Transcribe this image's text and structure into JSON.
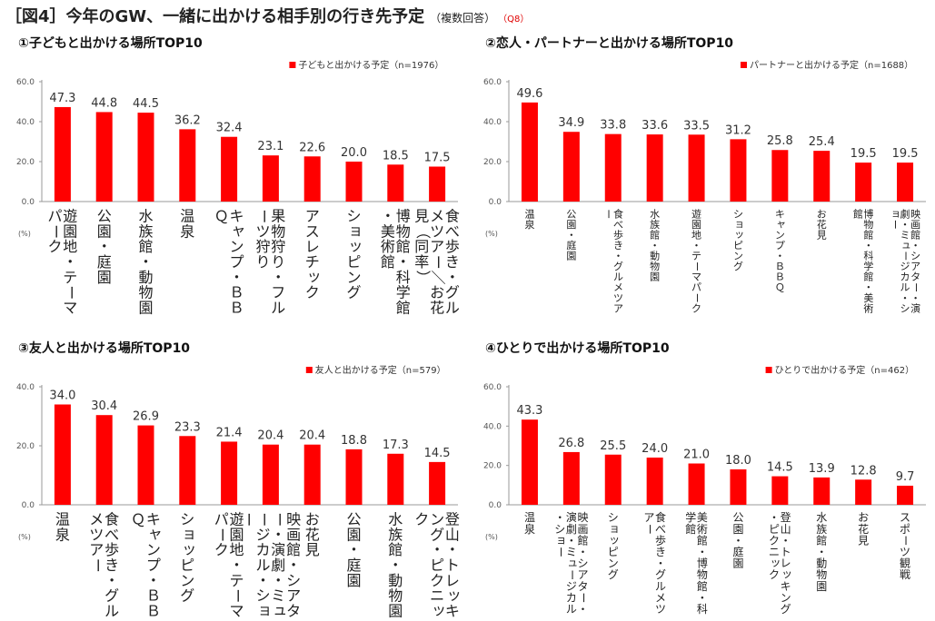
{
  "page_title": {
    "main": "［図4］今年のGW、一緒に出かける相手別の行き先予定",
    "note": "（複数回答）",
    "question": "（Q8）"
  },
  "colors": {
    "bar": "#ff0000",
    "axis": "#999999"
  },
  "chart_data": [
    {
      "type": "bar",
      "title": "①子どもと出かける場所TOP10",
      "legend": "子どもと出かける予定（n=1976）",
      "unit_label": "(%)",
      "ylim": [
        0,
        60
      ],
      "yticks": [
        0,
        20,
        40,
        60
      ],
      "ytick_labels": [
        "0.0",
        "20.0",
        "40.0",
        "60.0"
      ],
      "categories": [
        "遊園地・テーマパーク",
        "公園・庭園",
        "水族館・動物園",
        "温泉",
        "キャンプ・ＢＢＱ",
        "果物狩り・フルーツ狩り",
        "アスレチック",
        "ショッピング",
        "博物館・科学館・美術館",
        "食べ歩き・グルメツアー／お花見（同率）"
      ],
      "values": [
        47.3,
        44.8,
        44.5,
        36.2,
        32.4,
        23.1,
        22.6,
        20.0,
        18.5,
        17.5
      ],
      "value_labels": [
        "47.3",
        "44.8",
        "44.5",
        "36.2",
        "32.4",
        "23.1",
        "22.6",
        "20.0",
        "18.5",
        "17.5"
      ]
    },
    {
      "type": "bar",
      "title": "②恋人・パートナーと出かける場所TOP10",
      "legend": "パートナーと出かける予定（n=1688）",
      "unit_label": "(%)",
      "ylim": [
        0,
        60
      ],
      "yticks": [
        0,
        20,
        40,
        60
      ],
      "ytick_labels": [
        "0.0",
        "20.0",
        "40.0",
        "60.0"
      ],
      "categories": [
        "温泉",
        "公園・庭園",
        "食べ歩き・グルメツアー",
        "水族館・動物園",
        "遊園地・テーマパーク",
        "ショッピング",
        "キャンプ・ＢＢＱ",
        "お花見",
        "博物館・科学館・美術館",
        "映画館・シアター・演劇・ミュージカル・ショー"
      ],
      "values": [
        49.6,
        34.9,
        33.8,
        33.6,
        33.5,
        31.2,
        25.8,
        25.4,
        19.5,
        19.5
      ],
      "value_labels": [
        "49.6",
        "34.9",
        "33.8",
        "33.6",
        "33.5",
        "31.2",
        "25.8",
        "25.4",
        "19.5",
        "19.5"
      ]
    },
    {
      "type": "bar",
      "title": "③友人と出かける場所TOP10",
      "legend": "友人と出かける予定（n=579）",
      "unit_label": "(%)",
      "ylim": [
        0,
        40
      ],
      "yticks": [
        0,
        20,
        40
      ],
      "ytick_labels": [
        "0.0",
        "20.0",
        "40.0"
      ],
      "categories": [
        "温泉",
        "食べ歩き・グルメツアー",
        "キャンプ・ＢＢＱ",
        "ショッピング",
        "遊園地・テーマパーク",
        "映画館・シアター・演劇・ミュージカル・ショー",
        "お花見",
        "公園・庭園",
        "水族館・動物園",
        "登山・トレッキング・ピクニック"
      ],
      "values": [
        34.0,
        30.4,
        26.9,
        23.3,
        21.4,
        20.4,
        20.4,
        18.8,
        17.3,
        14.5
      ],
      "value_labels": [
        "34.0",
        "30.4",
        "26.9",
        "23.3",
        "21.4",
        "20.4",
        "20.4",
        "18.8",
        "17.3",
        "14.5"
      ]
    },
    {
      "type": "bar",
      "title": "④ひとりで出かける場所TOP10",
      "legend": "ひとりで出かける予定（n=462）",
      "unit_label": "(%)",
      "ylim": [
        0,
        60
      ],
      "yticks": [
        0,
        20,
        40,
        60
      ],
      "ytick_labels": [
        "0.0",
        "20.0",
        "40.0",
        "60.0"
      ],
      "categories": [
        "温泉",
        "映画館・シアター・演劇・ミュージカル・ショー",
        "ショッピング",
        "食べ歩き・グルメツアー",
        "美術館・博物館・科学館",
        "公園・庭園",
        "登山・トレッキング・ピクニック",
        "水族館・動物園",
        "お花見",
        "スポーツ観戦"
      ],
      "values": [
        43.3,
        26.8,
        25.5,
        24.0,
        21.0,
        18.0,
        14.5,
        13.9,
        12.8,
        9.7
      ],
      "value_labels": [
        "43.3",
        "26.8",
        "25.5",
        "24.0",
        "21.0",
        "18.0",
        "14.5",
        "13.9",
        "12.8",
        "9.7"
      ]
    }
  ]
}
